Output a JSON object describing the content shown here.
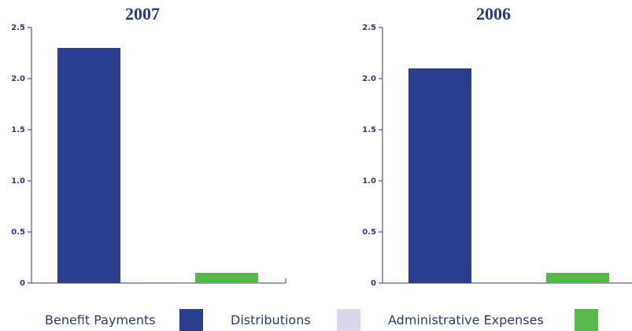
{
  "legend": {
    "items": [
      {
        "name": "Benefit Payments",
        "color": "#2b3f90"
      },
      {
        "name": "Distributions",
        "color": "#d9d7ea"
      },
      {
        "name": "Administrative Expenses",
        "color": "#56b848"
      }
    ]
  },
  "chart_data": [
    {
      "type": "bar",
      "title": "2007",
      "values": [
        2.3,
        0,
        0.1
      ],
      "ylim": [
        0,
        2.5
      ],
      "yticks": [
        0,
        0.5,
        {
          "value": 1,
          "label": "1.0"
        },
        1.5,
        {
          "value": 2,
          "label": "2.0"
        },
        2.5
      ]
    },
    {
      "type": "bar",
      "title": "2006",
      "values": [
        2.1,
        0,
        0.1
      ],
      "ylim": [
        0,
        2.5
      ],
      "yticks": [
        0,
        0.5,
        {
          "value": 1,
          "label": "1.0"
        },
        1.5,
        {
          "value": 2,
          "label": "2.0"
        },
        2.5
      ]
    }
  ]
}
